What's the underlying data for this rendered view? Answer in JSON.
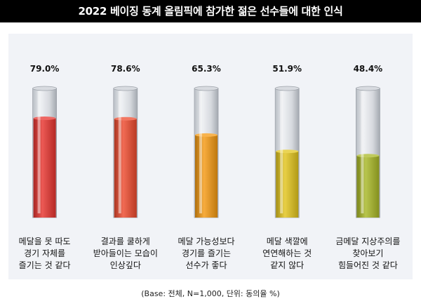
{
  "chart_data": {
    "type": "bar",
    "title": "2022 베이징 동계 올림픽에 참가한 젊은 선수들에 대한 인식",
    "categories": [
      [
        "메달을 못 따도",
        "경기 자체를",
        "즐기는 것 같다"
      ],
      [
        "결과를 쿨하게",
        "받아들이는 모습이",
        "인상깊다"
      ],
      [
        "메달 가능성보다",
        "경기를 즐기는",
        "선수가 좋다"
      ],
      [
        "메달 색깔에",
        "연연해하는 것",
        "같지 않다"
      ],
      [
        "금메달 지상주의를",
        "찾아보기",
        "힘들어진 것 같다"
      ]
    ],
    "values": [
      79.0,
      78.6,
      65.3,
      51.9,
      48.4
    ],
    "value_labels": [
      "79.0%",
      "78.6%",
      "65.3%",
      "51.9%",
      "48.4%"
    ],
    "colors": [
      "#e8342f",
      "#ee4a2e",
      "#f59a12",
      "#e3c51c",
      "#a9b826"
    ],
    "ylim": [
      0,
      100
    ],
    "footnote": "(Base: 전체, N=1,000, 단위: 동의율 %)"
  }
}
